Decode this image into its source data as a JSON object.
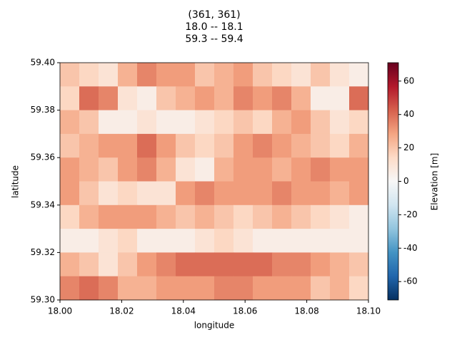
{
  "chart_data": {
    "type": "heatmap",
    "title": [
      "(361, 361)",
      "18.0 -- 18.1",
      "59.3 -- 59.4"
    ],
    "x_label": "longitude",
    "y_label": "latitude",
    "colorbar_label": "Elevation [m]",
    "colormap": "RdBu_r",
    "xlim": [
      18.0,
      18.1
    ],
    "xticks": [
      {
        "value": 18.0,
        "label": "18.00"
      },
      {
        "value": 18.02,
        "label": "18.02"
      },
      {
        "value": 18.04,
        "label": "18.04"
      },
      {
        "value": 18.06,
        "label": "18.06"
      },
      {
        "value": 18.08,
        "label": "18.08"
      },
      {
        "value": 18.1,
        "label": "18.10"
      }
    ],
    "ylim": [
      59.3,
      59.4
    ],
    "yticks": [
      {
        "value": 59.3,
        "label": "59.30"
      },
      {
        "value": 59.32,
        "label": "59.32"
      },
      {
        "value": 59.34,
        "label": "59.34"
      },
      {
        "value": 59.36,
        "label": "59.36"
      },
      {
        "value": 59.38,
        "label": "59.38"
      },
      {
        "value": 59.4,
        "label": "59.40"
      }
    ],
    "clim": [
      -71,
      71
    ],
    "cticks": [
      -60,
      -40,
      -20,
      0,
      20,
      40,
      60
    ],
    "z": [
      [
        20,
        15,
        10,
        25,
        35,
        30,
        30,
        20,
        25,
        30,
        20,
        15,
        10,
        20,
        10,
        5
      ],
      [
        15,
        40,
        35,
        10,
        5,
        20,
        25,
        30,
        25,
        35,
        30,
        35,
        25,
        5,
        5,
        40
      ],
      [
        25,
        20,
        5,
        5,
        10,
        5,
        5,
        10,
        15,
        20,
        15,
        25,
        30,
        20,
        10,
        15
      ],
      [
        20,
        25,
        30,
        30,
        40,
        30,
        20,
        15,
        20,
        30,
        35,
        30,
        25,
        20,
        15,
        25
      ],
      [
        30,
        25,
        20,
        30,
        35,
        25,
        10,
        5,
        25,
        30,
        30,
        25,
        30,
        35,
        30,
        30
      ],
      [
        30,
        20,
        10,
        15,
        10,
        10,
        30,
        35,
        30,
        30,
        30,
        35,
        30,
        30,
        25,
        30
      ],
      [
        15,
        25,
        30,
        30,
        30,
        25,
        20,
        25,
        20,
        15,
        20,
        25,
        20,
        15,
        10,
        5
      ],
      [
        5,
        5,
        10,
        15,
        5,
        5,
        5,
        10,
        15,
        10,
        5,
        5,
        5,
        5,
        5,
        5
      ],
      [
        25,
        20,
        10,
        20,
        30,
        35,
        40,
        40,
        40,
        40,
        40,
        35,
        35,
        30,
        25,
        20
      ],
      [
        35,
        40,
        35,
        25,
        25,
        30,
        30,
        30,
        35,
        35,
        30,
        30,
        30,
        20,
        25,
        15
      ]
    ]
  }
}
